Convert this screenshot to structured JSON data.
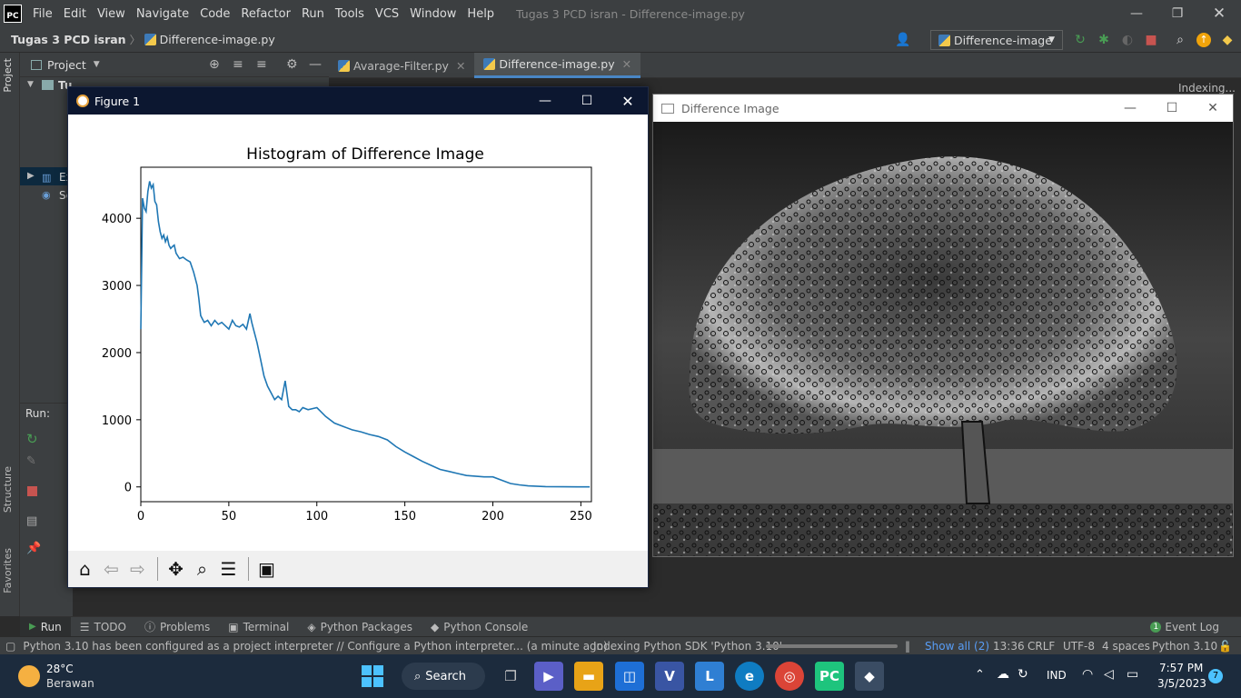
{
  "ide": {
    "logo": "PC",
    "menu": [
      "File",
      "Edit",
      "View",
      "Navigate",
      "Code",
      "Refactor",
      "Run",
      "Tools",
      "VCS",
      "Window",
      "Help"
    ],
    "window_title": "Tugas 3 PCD isran - Difference-image.py",
    "breadcrumb": {
      "project": "Tugas 3 PCD isran",
      "file": "Difference-image.py"
    },
    "run_config": "Difference-image",
    "project_panel_label": "Project",
    "project_tree_root": "Tugas 3 PCD isran",
    "project_tree_partial": [
      "Tu",
      "Ex",
      "Sc"
    ],
    "indexing": "Indexing...",
    "run_label": "Run:",
    "tabs": [
      {
        "label": "Avarage-Filter.py"
      },
      {
        "label": "Difference-image.py"
      }
    ],
    "left_stripe": {
      "project": "Project",
      "structure": "Structure",
      "favorites": "Favorites"
    },
    "tool_tabs": [
      "Run",
      "TODO",
      "Problems",
      "Terminal",
      "Python Packages",
      "Python Console"
    ],
    "event_log": "Event Log",
    "status": {
      "message": "Python 3.10 has been configured as a project interpreter // Configure a Python interpreter... (a minute ago)",
      "indexing": "Indexing Python SDK 'Python 3.10'",
      "show_all": "Show all (2)",
      "position": "13:36",
      "line_sep": "CRLF",
      "encoding": "UTF-8",
      "indent": "4 spaces",
      "interpreter": "Python 3.10"
    }
  },
  "figure": {
    "window_title": "Figure 1",
    "toolbar_icons": [
      "home-icon",
      "back-icon",
      "forward-icon",
      "pan-icon",
      "zoom-icon",
      "configure-icon",
      "save-icon"
    ]
  },
  "chart_data": {
    "type": "line",
    "title": "Histogram of Difference Image",
    "xlabel": "",
    "ylabel": "",
    "xlim": [
      0,
      256
    ],
    "ylim": [
      -220,
      4760
    ],
    "xticks": [
      0,
      50,
      100,
      150,
      200,
      250
    ],
    "yticks": [
      0,
      1000,
      2000,
      3000,
      4000
    ],
    "grid": false,
    "series": [
      {
        "color": "#1f77b4",
        "x": [
          0,
          1,
          2,
          3,
          4,
          5,
          6,
          7,
          8,
          9,
          10,
          11,
          12,
          13,
          14,
          15,
          16,
          17,
          18,
          19,
          20,
          22,
          24,
          26,
          28,
          30,
          32,
          33,
          34,
          35,
          36,
          38,
          40,
          42,
          44,
          46,
          48,
          50,
          52,
          54,
          56,
          58,
          60,
          62,
          63,
          64,
          66,
          68,
          70,
          72,
          74,
          76,
          78,
          80,
          82,
          84,
          86,
          88,
          90,
          92,
          95,
          100,
          105,
          110,
          115,
          120,
          125,
          130,
          135,
          140,
          145,
          150,
          155,
          160,
          165,
          170,
          175,
          180,
          185,
          190,
          195,
          200,
          205,
          210,
          215,
          220,
          230,
          240,
          250,
          255
        ],
        "values": [
          2350,
          4300,
          4150,
          4100,
          4400,
          4550,
          4450,
          4500,
          4250,
          4200,
          3950,
          3800,
          3700,
          3750,
          3650,
          3720,
          3600,
          3550,
          3580,
          3600,
          3480,
          3400,
          3420,
          3380,
          3350,
          3200,
          3000,
          2800,
          2550,
          2500,
          2450,
          2480,
          2400,
          2480,
          2420,
          2450,
          2400,
          2350,
          2480,
          2400,
          2380,
          2420,
          2350,
          2580,
          2450,
          2350,
          2150,
          1900,
          1650,
          1500,
          1400,
          1300,
          1350,
          1300,
          1580,
          1200,
          1150,
          1150,
          1120,
          1180,
          1150,
          1180,
          1050,
          950,
          900,
          850,
          820,
          780,
          750,
          700,
          600,
          520,
          450,
          380,
          320,
          260,
          230,
          200,
          170,
          160,
          150,
          150,
          100,
          50,
          30,
          15,
          5,
          2,
          1,
          0
        ]
      }
    ]
  },
  "diff_window": {
    "title": "Difference Image"
  },
  "taskbar": {
    "weather_temp": "28°C",
    "weather_desc": "Berawan",
    "search_label": "Search",
    "lang": "IND",
    "time": "7:57 PM",
    "date": "3/5/2023",
    "notifications": "7"
  }
}
